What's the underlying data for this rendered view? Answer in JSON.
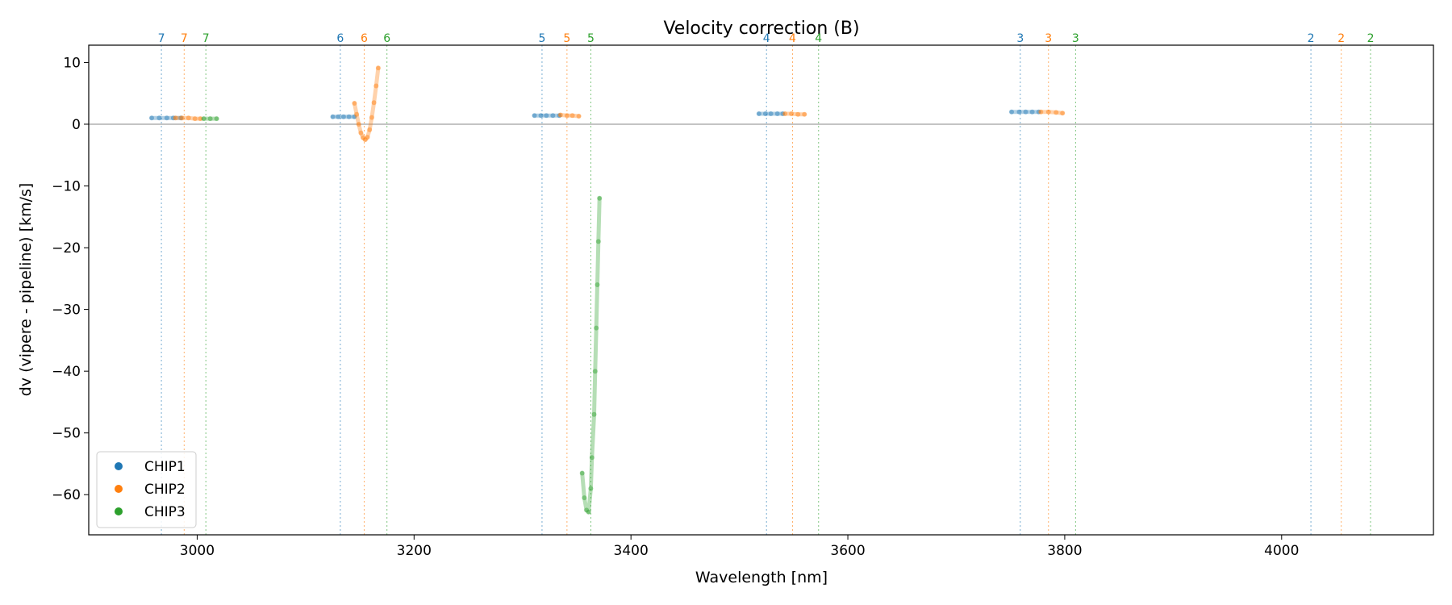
{
  "chart_data": {
    "type": "scatter",
    "title": "Velocity correction (B)",
    "xlabel": "Wavelength [nm]",
    "ylabel": "dv (vipere - pipeline) [km/s]",
    "xlim": [
      2900,
      4140
    ],
    "ylim": [
      -66.5,
      12.8
    ],
    "xticks": [
      3000,
      3200,
      3400,
      3600,
      3800,
      4000
    ],
    "yticks": [
      10,
      0,
      -10,
      -20,
      -30,
      -40,
      -50,
      -60
    ],
    "zero_line": 0,
    "legend_position": "lower-left",
    "colors": {
      "CHIP1": "#1f77b4",
      "CHIP2": "#ff7f0e",
      "CHIP3": "#2ca02c"
    },
    "order_markers": [
      {
        "order": "7",
        "chip": "CHIP1",
        "x": 2967
      },
      {
        "order": "7",
        "chip": "CHIP2",
        "x": 2988
      },
      {
        "order": "7",
        "chip": "CHIP3",
        "x": 3008
      },
      {
        "order": "6",
        "chip": "CHIP1",
        "x": 3132
      },
      {
        "order": "6",
        "chip": "CHIP2",
        "x": 3154
      },
      {
        "order": "6",
        "chip": "CHIP3",
        "x": 3175
      },
      {
        "order": "5",
        "chip": "CHIP1",
        "x": 3318
      },
      {
        "order": "5",
        "chip": "CHIP2",
        "x": 3341
      },
      {
        "order": "5",
        "chip": "CHIP3",
        "x": 3363
      },
      {
        "order": "4",
        "chip": "CHIP1",
        "x": 3525
      },
      {
        "order": "4",
        "chip": "CHIP2",
        "x": 3549
      },
      {
        "order": "4",
        "chip": "CHIP3",
        "x": 3573
      },
      {
        "order": "3",
        "chip": "CHIP1",
        "x": 3759
      },
      {
        "order": "3",
        "chip": "CHIP2",
        "x": 3785
      },
      {
        "order": "3",
        "chip": "CHIP3",
        "x": 3810
      },
      {
        "order": "2",
        "chip": "CHIP1",
        "x": 4027
      },
      {
        "order": "2",
        "chip": "CHIP2",
        "x": 4055
      },
      {
        "order": "2",
        "chip": "CHIP3",
        "x": 4082
      }
    ],
    "series": [
      {
        "name": "CHIP1",
        "segments": [
          {
            "x": [
              2958,
              2965,
              2972,
              2978,
              2985
            ],
            "y": [
              1.0,
              1.0,
              1.0,
              1.0,
              1.0
            ]
          },
          {
            "x": [
              3125,
              3130,
              3135,
              3140,
              3145
            ],
            "y": [
              1.2,
              1.2,
              1.2,
              1.2,
              1.2
            ]
          },
          {
            "x": [
              3311,
              3317,
              3322,
              3328,
              3334
            ],
            "y": [
              1.4,
              1.4,
              1.4,
              1.4,
              1.4
            ]
          },
          {
            "x": [
              3518,
              3524,
              3529,
              3535,
              3540
            ],
            "y": [
              1.7,
              1.7,
              1.7,
              1.7,
              1.7
            ]
          },
          {
            "x": [
              3751,
              3758,
              3764,
              3770,
              3776
            ],
            "y": [
              2.0,
              2.0,
              2.0,
              2.0,
              2.0
            ]
          }
        ]
      },
      {
        "name": "CHIP2",
        "segments": [
          {
            "x": [
              2980,
              2986,
              2992,
              2998,
              3003
            ],
            "y": [
              1.0,
              1.0,
              1.0,
              0.9,
              0.9
            ]
          },
          {
            "x": [
              3145,
              3147,
              3149,
              3151,
              3153,
              3155,
              3157,
              3159,
              3161,
              3163,
              3165,
              3167
            ],
            "y": [
              3.4,
              1.6,
              0.0,
              -1.4,
              -2.2,
              -2.5,
              -2.1,
              -0.9,
              1.1,
              3.5,
              6.2,
              9.1
            ]
          },
          {
            "x": [
              3335,
              3341,
              3346,
              3352
            ],
            "y": [
              1.5,
              1.4,
              1.4,
              1.3
            ]
          },
          {
            "x": [
              3542,
              3548,
              3554,
              3560
            ],
            "y": [
              1.7,
              1.7,
              1.6,
              1.6
            ]
          },
          {
            "x": [
              3778,
              3785,
              3792,
              3798
            ],
            "y": [
              2.0,
              2.0,
              1.9,
              1.8
            ]
          }
        ]
      },
      {
        "name": "CHIP3",
        "segments": [
          {
            "x": [
              3006,
              3012,
              3018
            ],
            "y": [
              0.9,
              0.9,
              0.9
            ]
          },
          {
            "x": [
              3355,
              3357,
              3359,
              3361,
              3363,
              3364,
              3366,
              3367,
              3368,
              3369,
              3370,
              3371
            ],
            "y": [
              -56.5,
              -60.5,
              -62.5,
              -62.8,
              -59.0,
              -54.0,
              -47.0,
              -40.0,
              -33.0,
              -26.0,
              -19.0,
              -12.0
            ]
          }
        ]
      }
    ],
    "legend": [
      "CHIP1",
      "CHIP2",
      "CHIP3"
    ]
  }
}
